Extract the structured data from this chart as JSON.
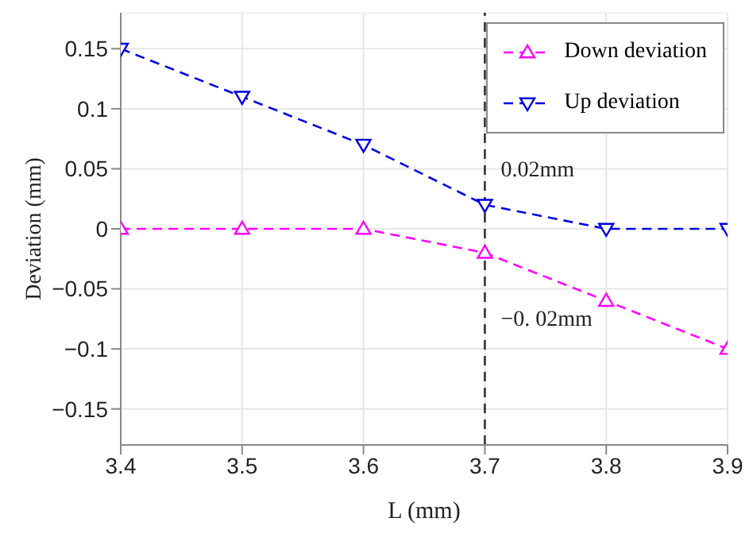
{
  "chart_data": {
    "type": "line",
    "xlabel": "L (mm)",
    "ylabel": "Deviation (mm)",
    "x": [
      3.4,
      3.5,
      3.6,
      3.7,
      3.8,
      3.9
    ],
    "series": [
      {
        "name": "Down deviation",
        "color": "#ff00ff",
        "values": [
          0,
          0,
          0,
          -0.02,
          -0.06,
          -0.1
        ],
        "marker": "triangle"
      },
      {
        "name": "Up deviation",
        "color": "#0000e0",
        "values": [
          0.15,
          0.11,
          0.07,
          0.02,
          0,
          0
        ],
        "marker": "triangle-down"
      }
    ],
    "xlim": [
      3.4,
      3.9
    ],
    "xticks": [
      3.4,
      3.5,
      3.6,
      3.7,
      3.8,
      3.9
    ],
    "ylim": [
      -0.18,
      0.18
    ],
    "yticks": [
      -0.15,
      -0.1,
      -0.05,
      0,
      0.05,
      0.1,
      0.15
    ],
    "ref_lines": [
      {
        "axis": "x",
        "value": 3.7,
        "color": "#333333",
        "line_style": "dashed"
      }
    ],
    "annotations": [
      {
        "text": "0.02mm",
        "x": 3.7,
        "y": 0.02
      },
      {
        "text": "−0. 02mm",
        "x": 3.7,
        "y": -0.02
      }
    ],
    "grid": true,
    "legend": "top right",
    "line_style": "dashed"
  }
}
